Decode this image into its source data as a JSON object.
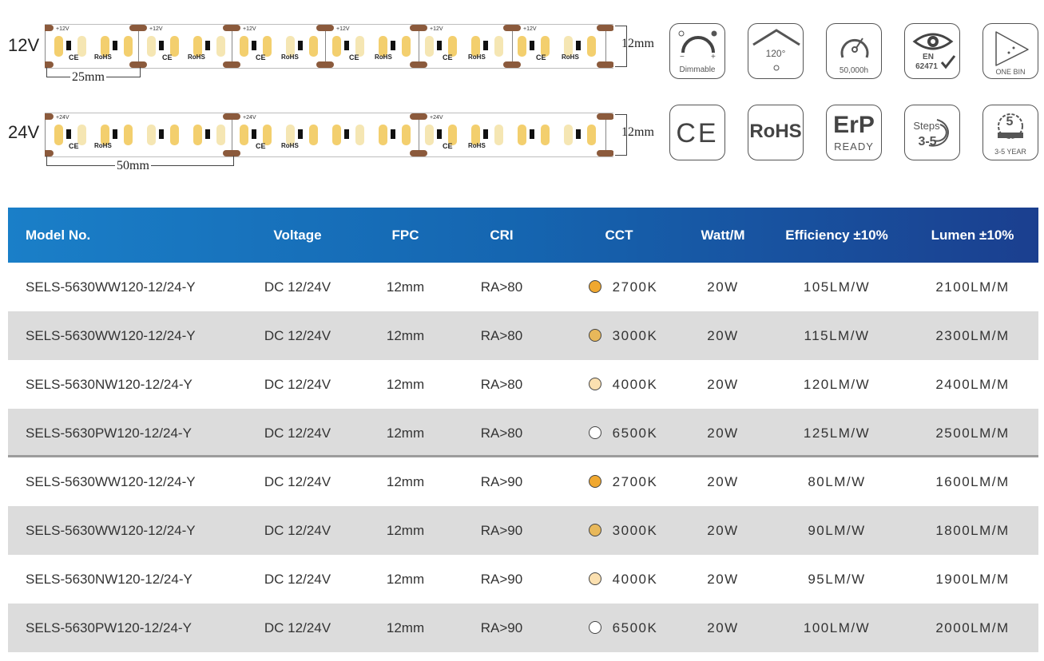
{
  "strips": {
    "v12": {
      "label": "12V",
      "width": "12mm",
      "segment": "25mm",
      "pcb_mark": "+12V",
      "rohs": "RoHS",
      "ce": "CE"
    },
    "v24": {
      "label": "24V",
      "width": "12mm",
      "segment": "50mm",
      "pcb_mark": "+24V",
      "rohs": "RoHS",
      "ce": "CE"
    }
  },
  "features": {
    "dimmable": {
      "icon": "dimmable-icon",
      "caption": "Dimmable"
    },
    "angle": {
      "icon": "beam-angle-icon",
      "value": "120°"
    },
    "lifetime": {
      "icon": "lifetime-icon",
      "caption": "50,000h"
    },
    "eye": {
      "icon": "eye-safety-icon",
      "line1": "EN",
      "line2": "62471"
    },
    "bin": {
      "icon": "one-bin-icon",
      "caption": "ONE BIN"
    },
    "ce": {
      "icon": "ce-icon",
      "text": "CE"
    },
    "rohs": {
      "icon": "rohs-icon",
      "text": "RoHS"
    },
    "erp": {
      "icon": "erp-icon",
      "line1": "ErP",
      "line2": "READY"
    },
    "steps": {
      "icon": "macadam-steps-icon",
      "line1": "Steps",
      "line2": "3-5"
    },
    "warranty": {
      "icon": "warranty-icon",
      "years": "5",
      "caption": "3-5 YEAR"
    }
  },
  "table": {
    "headers": [
      "Model No.",
      "Voltage",
      "FPC",
      "CRI",
      "CCT",
      "Watt/M",
      "Efficiency ±10%",
      "Lumen ±10%"
    ],
    "rows": [
      {
        "model": "SELS-5630WW120-12/24-Y",
        "voltage": "DC 12/24V",
        "fpc": "12mm",
        "cri": "RA>80",
        "cct": "2700K",
        "dot": "#f0a830",
        "watt": "20W",
        "eff": "105LM/W",
        "lumen": "2100LM/M"
      },
      {
        "model": "SELS-5630WW120-12/24-Y",
        "voltage": "DC 12/24V",
        "fpc": "12mm",
        "cri": "RA>80",
        "cct": "3000K",
        "dot": "#e8b85a",
        "watt": "20W",
        "eff": "115LM/W",
        "lumen": "2300LM/M"
      },
      {
        "model": "SELS-5630NW120-12/24-Y",
        "voltage": "DC 12/24V",
        "fpc": "12mm",
        "cri": "RA>80",
        "cct": "4000K",
        "dot": "#fbe0b0",
        "watt": "20W",
        "eff": "120LM/W",
        "lumen": "2400LM/M"
      },
      {
        "model": "SELS-5630PW120-12/24-Y",
        "voltage": "DC 12/24V",
        "fpc": "12mm",
        "cri": "RA>80",
        "cct": "6500K",
        "dot": "#ffffff",
        "watt": "20W",
        "eff": "125LM/W",
        "lumen": "2500LM/M"
      },
      {
        "model": "SELS-5630WW120-12/24-Y",
        "voltage": "DC 12/24V",
        "fpc": "12mm",
        "cri": "RA>90",
        "cct": "2700K",
        "dot": "#f0a830",
        "watt": "20W",
        "eff": "80LM/W",
        "lumen": "1600LM/M"
      },
      {
        "model": "SELS-5630WW120-12/24-Y",
        "voltage": "DC 12/24V",
        "fpc": "12mm",
        "cri": "RA>90",
        "cct": "3000K",
        "dot": "#e8b85a",
        "watt": "20W",
        "eff": "90LM/W",
        "lumen": "1800LM/M"
      },
      {
        "model": "SELS-5630NW120-12/24-Y",
        "voltage": "DC 12/24V",
        "fpc": "12mm",
        "cri": "RA>90",
        "cct": "4000K",
        "dot": "#fbe0b0",
        "watt": "20W",
        "eff": "95LM/W",
        "lumen": "1900LM/M"
      },
      {
        "model": "SELS-5630PW120-12/24-Y",
        "voltage": "DC 12/24V",
        "fpc": "12mm",
        "cri": "RA>90",
        "cct": "6500K",
        "dot": "#ffffff",
        "watt": "20W",
        "eff": "100LM/W",
        "lumen": "2000LM/M"
      }
    ]
  },
  "colors": {
    "header_start": "#1a7fc8",
    "header_end": "#1b3f8f",
    "alt_row": "#dcdcdc",
    "pcb_pad": "#8b5a3c",
    "led": "#f3cf6e"
  }
}
